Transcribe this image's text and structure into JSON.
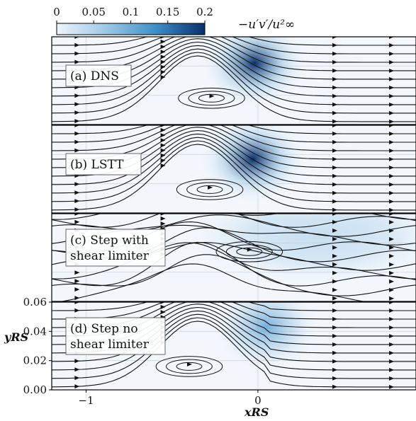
{
  "chart_data": {
    "type": "heatmap",
    "colorbar": {
      "label": "−u′v′/u²∞",
      "ticks": [
        "0",
        "0.05",
        "0.1",
        "0.15",
        "0.2"
      ],
      "range": [
        0,
        0.2
      ],
      "colormap": [
        "#eef4fb",
        "#9ec8e6",
        "#3f8fc9",
        "#08306b"
      ],
      "placement": "top"
    },
    "x_axis": {
      "label": "xRS",
      "ticks": [
        {
          "value": -1,
          "label": "−1"
        },
        {
          "value": 0,
          "label": "0"
        }
      ],
      "range": [
        -1.2,
        0.92
      ]
    },
    "y_axis": {
      "label": "yRS",
      "ticks": [
        {
          "value": 0.0,
          "label": "0.00"
        },
        {
          "value": 0.02,
          "label": "0.02"
        },
        {
          "value": 0.04,
          "label": "0.04"
        },
        {
          "value": 0.06,
          "label": "0.06"
        }
      ],
      "range": [
        0,
        0.06
      ]
    },
    "panels": [
      {
        "label": "(a) DNS",
        "peak_x": -0.02,
        "peak_y": 0.042,
        "peak_value": 0.19,
        "vortex_x": -0.27,
        "vortex_y": 0.018
      },
      {
        "label": "(b) LSTT",
        "peak_x": -0.03,
        "peak_y": 0.037,
        "peak_value": 0.2,
        "vortex_x": -0.28,
        "vortex_y": 0.016
      },
      {
        "label": "(c) Step with\nshear limiter",
        "peak_x": 0.35,
        "peak_y": 0.045,
        "peak_value": 0.035,
        "vortex_x": -0.05,
        "vortex_y": 0.034
      },
      {
        "label": "(d) Step no\nshear limiter",
        "peak_x": 0.05,
        "peak_y": 0.043,
        "peak_value": 0.07,
        "vortex_x": -0.4,
        "vortex_y": 0.016
      }
    ],
    "grid": true
  }
}
